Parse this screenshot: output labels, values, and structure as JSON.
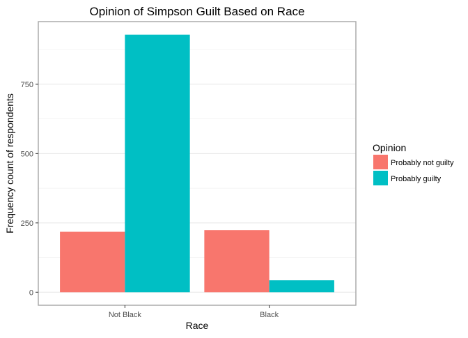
{
  "chart_data": {
    "type": "bar",
    "title": "Opinion of Simpson Guilt Based on Race",
    "xlabel": "Race",
    "ylabel": "Frequency count of respondents",
    "categories": [
      "Not Black",
      "Black"
    ],
    "series": [
      {
        "name": "Probably not guilty",
        "color": "#F8766D",
        "values": [
          218,
          224
        ]
      },
      {
        "name": "Probably guilty",
        "color": "#00BFC4",
        "values": [
          929,
          43
        ]
      }
    ],
    "ylim": [
      -47,
      976
    ],
    "yticks": [
      0,
      250,
      500,
      750
    ],
    "ytick_labels": [
      "0",
      "250",
      "500",
      "750"
    ],
    "grid": true,
    "legend_title": "Opinion",
    "legend_position": "right"
  }
}
